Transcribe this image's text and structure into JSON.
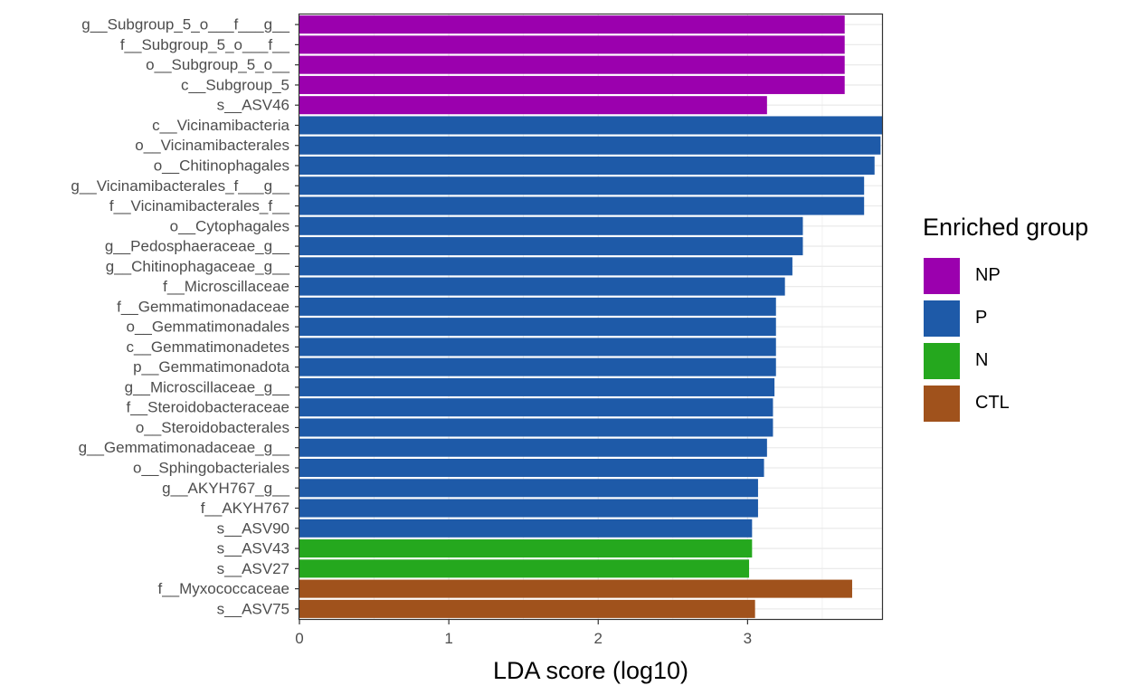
{
  "chart_data": {
    "type": "bar",
    "orientation": "horizontal",
    "xlabel": "LDA score (log10)",
    "ylabel": "",
    "xlim": [
      0,
      3.9
    ],
    "xticks": [
      0,
      1,
      2,
      3
    ],
    "grid": true,
    "legend_placement": "right",
    "legend_title": "Enriched group",
    "groups": [
      {
        "name": "NP",
        "color": "#9B00AE"
      },
      {
        "name": "P",
        "color": "#1E5AA8"
      },
      {
        "name": "N",
        "color": "#25A81E"
      },
      {
        "name": "CTL",
        "color": "#A0521C"
      }
    ],
    "categories": [
      "g__Subgroup_5_o___f___g__",
      "f__Subgroup_5_o___f__",
      "o__Subgroup_5_o__",
      "c__Subgroup_5",
      "s__ASV46",
      "c__Vicinamibacteria",
      "o__Vicinamibacterales",
      "o__Chitinophagales",
      "g__Vicinamibacterales_f___g__",
      "f__Vicinamibacterales_f__",
      "o__Cytophagales",
      "g__Pedosphaeraceae_g__",
      "g__Chitinophagaceae_g__",
      "f__Microscillaceae",
      "f__Gemmatimonadaceae",
      "o__Gemmatimonadales",
      "c__Gemmatimonadetes",
      "p__Gemmatimonadota",
      "g__Microscillaceae_g__",
      "f__Steroidobacteraceae",
      "o__Steroidobacterales",
      "g__Gemmatimonadaceae_g__",
      "o__Sphingobacteriales",
      "g__AKYH767_g__",
      "f__AKYH767",
      "s__ASV90",
      "s__ASV43",
      "s__ASV27",
      "f__Myxococcaceae",
      "s__ASV75"
    ],
    "values": [
      3.65,
      3.65,
      3.65,
      3.65,
      3.13,
      3.91,
      3.89,
      3.85,
      3.78,
      3.78,
      3.37,
      3.37,
      3.3,
      3.25,
      3.19,
      3.19,
      3.19,
      3.19,
      3.18,
      3.17,
      3.17,
      3.13,
      3.11,
      3.07,
      3.07,
      3.03,
      3.03,
      3.01,
      3.7,
      3.05
    ],
    "group": [
      "NP",
      "NP",
      "NP",
      "NP",
      "NP",
      "P",
      "P",
      "P",
      "P",
      "P",
      "P",
      "P",
      "P",
      "P",
      "P",
      "P",
      "P",
      "P",
      "P",
      "P",
      "P",
      "P",
      "P",
      "P",
      "P",
      "P",
      "N",
      "N",
      "CTL",
      "CTL"
    ]
  }
}
